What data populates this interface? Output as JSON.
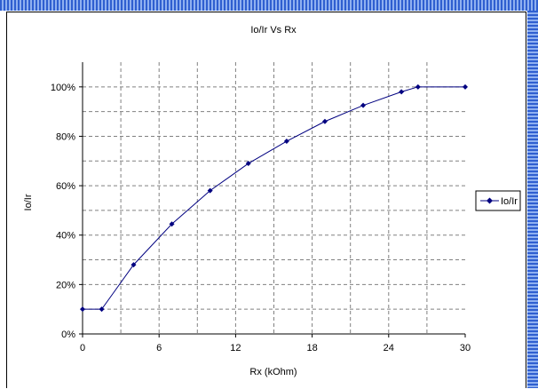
{
  "chart_data": {
    "type": "line",
    "title": "Io/Ir Vs Rx",
    "xlabel": "Rx (kOhm)",
    "ylabel": "Io/Ir",
    "xlim": [
      0,
      30
    ],
    "ylim": [
      0,
      1.1
    ],
    "x_ticks": [
      "0",
      "6",
      "12",
      "18",
      "24",
      "30"
    ],
    "y_ticks": [
      "0%",
      "20%",
      "40%",
      "60%",
      "80%",
      "100%"
    ],
    "grid": true,
    "legend_position": "right",
    "series": [
      {
        "name": "Io/Ir",
        "color": "#000080",
        "marker": "diamond",
        "x": [
          0,
          1.5,
          4,
          7,
          10,
          13,
          16,
          19,
          22,
          25,
          26.3,
          30
        ],
        "y": [
          0.1,
          0.1,
          0.28,
          0.445,
          0.58,
          0.69,
          0.78,
          0.86,
          0.925,
          0.98,
          1.0,
          1.0
        ]
      }
    ]
  }
}
